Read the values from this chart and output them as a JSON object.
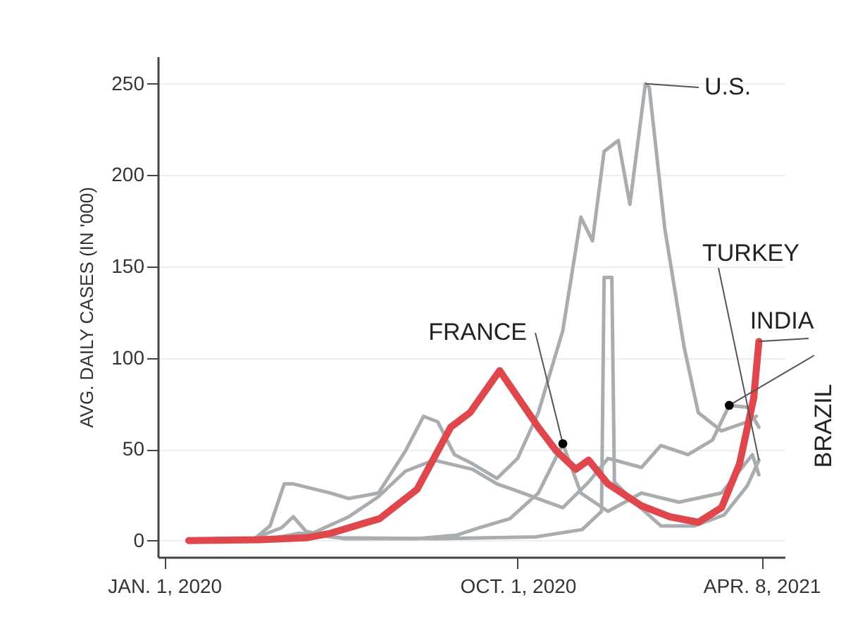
{
  "chart_data": {
    "type": "line",
    "ylabel": "AVG. DAILY CASES (IN '000)",
    "xlim": [
      "2019-12-27",
      "2021-04-26"
    ],
    "ylim": [
      -9,
      265
    ],
    "xticks": [
      {
        "value": "2020-01-01",
        "label": "JAN. 1, 2020"
      },
      {
        "value": "2020-10-01",
        "label": "OCT. 1, 2020"
      },
      {
        "value": "2021-04-08",
        "label": "APR. 8, 2021"
      }
    ],
    "yticks": [
      0,
      50,
      100,
      150,
      200,
      250
    ],
    "grid": "y",
    "legend": false,
    "line_style": "solid",
    "marker": "none",
    "series": [
      {
        "name": "U.S.",
        "color": "#a9adb0",
        "x": [
          "2020-01-20",
          "2020-03-10",
          "2020-03-23",
          "2020-04-03",
          "2020-04-10",
          "2020-05-09",
          "2020-05-23",
          "2020-06-15",
          "2020-07-06",
          "2020-07-20",
          "2020-07-31",
          "2020-08-13",
          "2020-08-27",
          "2020-09-15",
          "2020-10-01",
          "2020-10-17",
          "2020-11-05",
          "2020-11-19",
          "2020-11-28",
          "2020-12-07",
          "2020-12-18",
          "2020-12-27",
          "2021-01-08",
          "2021-01-11",
          "2021-01-23",
          "2021-02-07",
          "2021-02-18",
          "2021-03-08",
          "2021-03-28",
          "2021-04-04"
        ],
        "values": [
          0,
          0.5,
          8,
          31,
          31,
          26,
          23,
          26,
          49,
          68,
          65,
          47,
          42,
          34,
          45,
          70,
          115,
          177,
          164,
          213,
          219,
          184,
          250,
          248,
          171,
          106,
          70,
          60,
          65,
          68
        ]
      },
      {
        "name": "FRANCE",
        "color": "#a9adb0",
        "x": [
          "2020-01-20",
          "2020-03-10",
          "2020-04-01",
          "2020-04-10",
          "2020-04-20",
          "2020-05-20",
          "2020-07-15",
          "2020-08-15",
          "2020-09-01",
          "2020-09-25",
          "2020-10-17",
          "2020-11-05",
          "2020-11-19",
          "2020-12-10",
          "2021-01-05",
          "2021-02-03",
          "2021-03-08",
          "2021-04-01",
          "2021-04-06"
        ],
        "values": [
          0,
          1,
          7,
          13,
          5,
          1,
          1,
          3,
          7,
          12,
          26,
          53,
          26,
          16,
          26,
          21,
          26,
          47,
          36
        ]
      },
      {
        "name": "TURKEY",
        "color": "#a9adb0",
        "x": [
          "2020-01-20",
          "2020-03-20",
          "2020-04-15",
          "2020-05-15",
          "2020-08-01",
          "2020-10-15",
          "2020-11-20",
          "2020-12-05",
          "2020-12-07",
          "2020-12-13",
          "2020-12-15",
          "2021-01-01",
          "2021-01-20",
          "2021-02-15",
          "2021-03-10",
          "2021-03-28",
          "2021-04-06"
        ],
        "values": [
          0,
          0.5,
          4,
          1.5,
          1,
          2,
          6,
          16,
          144,
          144,
          32,
          20,
          8,
          8,
          14,
          30,
          44
        ]
      },
      {
        "name": "BRAZIL",
        "color": "#a9adb0",
        "x": [
          "2020-01-20",
          "2020-03-25",
          "2020-04-25",
          "2020-05-23",
          "2020-06-15",
          "2020-07-06",
          "2020-07-28",
          "2020-08-27",
          "2020-09-15",
          "2020-10-01",
          "2020-11-05",
          "2020-11-25",
          "2020-12-10",
          "2021-01-05",
          "2021-01-20",
          "2021-02-10",
          "2021-03-01",
          "2021-03-14",
          "2021-03-28",
          "2021-04-06"
        ],
        "values": [
          0,
          0.5,
          4,
          13,
          24,
          38,
          44,
          39,
          31,
          27,
          18,
          32,
          45,
          40,
          52,
          47,
          55,
          74,
          73,
          62
        ]
      },
      {
        "name": "INDIA",
        "color": "#e0474c",
        "x": [
          "2020-01-20",
          "2020-03-15",
          "2020-04-20",
          "2020-05-09",
          "2020-06-16",
          "2020-07-15",
          "2020-08-10",
          "2020-08-25",
          "2020-09-17",
          "2020-10-17",
          "2020-10-31",
          "2020-11-15",
          "2020-11-25",
          "2020-12-10",
          "2021-01-05",
          "2021-01-27",
          "2021-02-18",
          "2021-03-08",
          "2021-03-22",
          "2021-04-02",
          "2021-04-06"
        ],
        "values": [
          0,
          0.5,
          1.5,
          4,
          12,
          28,
          62,
          70,
          93,
          62,
          49,
          39,
          44,
          31,
          19,
          13,
          10,
          18,
          42,
          78,
          109
        ]
      }
    ]
  }
}
